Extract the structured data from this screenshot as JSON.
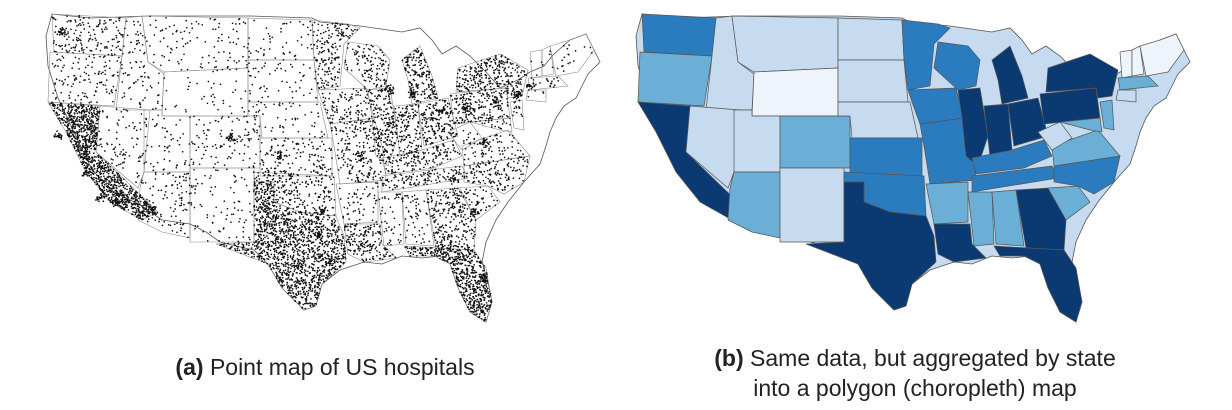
{
  "panel_a": {
    "caption_tag": "(a)",
    "caption_text": "Point map of US hospitals"
  },
  "panel_b": {
    "caption_tag": "(b)",
    "caption_line1": "Same data, but aggregated by state",
    "caption_line2": "into a polygon (choropleth) map"
  },
  "colors": {
    "points": "#111111",
    "state_border_a": "#555555",
    "state_border_b": "#555555",
    "choropleth_scale": [
      "#eef4fb",
      "#c6dbef",
      "#6baed6",
      "#2b7bbf",
      "#0b3a73"
    ]
  }
}
